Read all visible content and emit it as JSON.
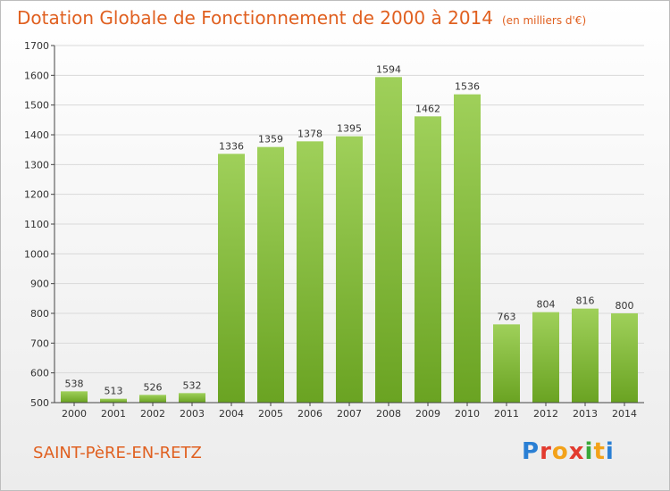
{
  "title": "Dotation Globale de Fonctionnement de 2000 à 2014",
  "subtitle": "(en milliers d'€)",
  "place": "SAINT-PèRE-EN-RETZ",
  "logo": "Proxiti",
  "colors": {
    "title": "#e06020",
    "bar_top": "#9fd05a",
    "bar_bottom": "#6aa322",
    "grid": "#d9d9d9",
    "axis": "#444444"
  },
  "chart_data": {
    "type": "bar",
    "title": "Dotation Globale de Fonctionnement de 2000 à 2014",
    "subtitle": "(en milliers d'€)",
    "xlabel": "",
    "ylabel": "",
    "categories": [
      "2000",
      "2001",
      "2002",
      "2003",
      "2004",
      "2005",
      "2006",
      "2007",
      "2008",
      "2009",
      "2010",
      "2011",
      "2012",
      "2013",
      "2014"
    ],
    "values": [
      538,
      513,
      526,
      532,
      1336,
      1359,
      1378,
      1395,
      1594,
      1462,
      1536,
      763,
      804,
      816,
      800
    ],
    "ylim": [
      500,
      1700
    ],
    "yticks": [
      500,
      600,
      700,
      800,
      900,
      1000,
      1100,
      1200,
      1300,
      1400,
      1500,
      1600,
      1700
    ],
    "grid": true,
    "data_labels": true
  }
}
